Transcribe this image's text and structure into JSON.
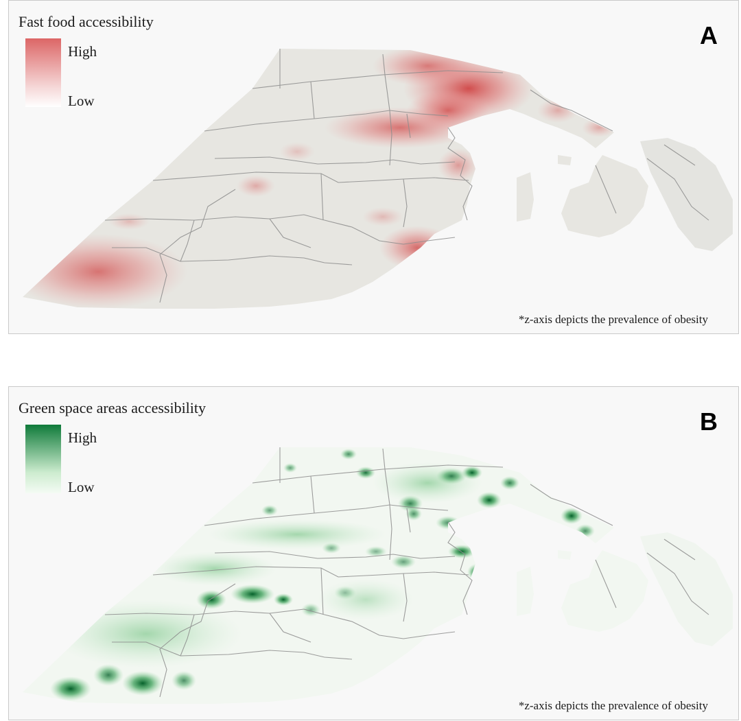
{
  "panels": [
    {
      "letter": "A",
      "title": "Fast food accessibility",
      "legend": {
        "high_label": "High",
        "low_label": "Low",
        "high_color": "#dc6666",
        "low_color": "#ffffff"
      },
      "footnote": "*z-axis depicts the prevalence of obesity",
      "accent": "#d95555"
    },
    {
      "letter": "B",
      "title": "Green space areas accessibility",
      "legend": {
        "high_label": "High",
        "low_label": "Low",
        "high_color": "#0f7a3a",
        "low_color": "#f4fbf4"
      },
      "footnote": "*z-axis depicts the prevalence of obesity",
      "accent": "#0d7a35"
    }
  ]
}
